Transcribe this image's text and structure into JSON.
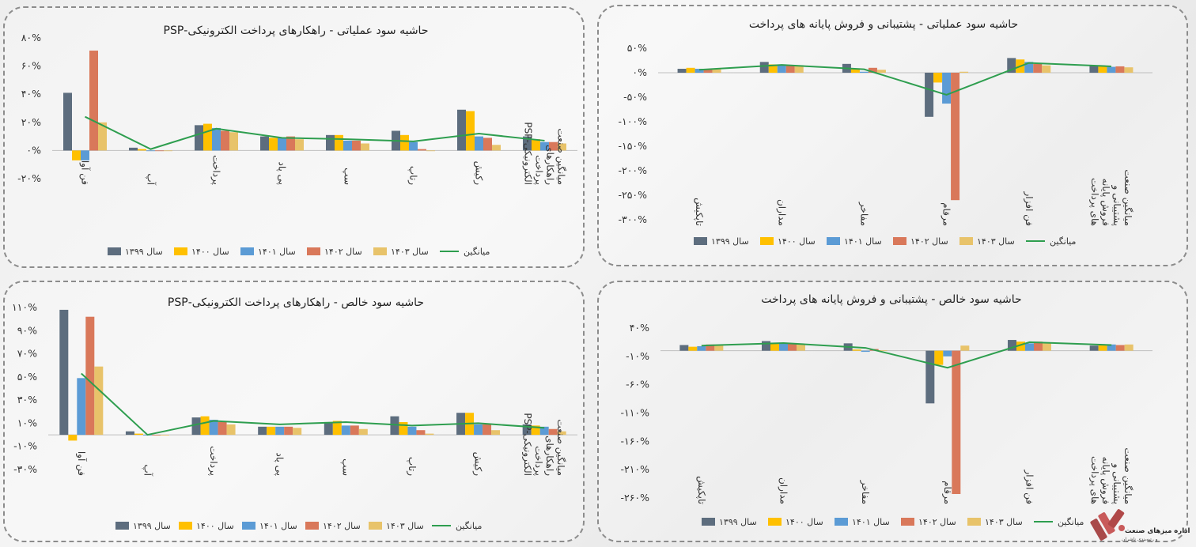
{
  "colors": {
    "s1399": "#5d6d7e",
    "s1400": "#ffc000",
    "s1401": "#5b9bd5",
    "s1402": "#d9785a",
    "s1403": "#e8c36a",
    "avg": "#2e9e4f"
  },
  "legend_labels": [
    "سال ۱۳۹۹",
    "سال ۱۴۰۰",
    "سال ۱۴۰۱",
    "سال ۱۴۰۲",
    "سال ۱۴۰۳",
    "میانگین"
  ],
  "brand": {
    "title": "اداره میزهای صنعت",
    "subtitle": "و رتبه‌بندی ناشران"
  },
  "chart_data": [
    {
      "id": "psp-operating",
      "type": "bar",
      "title": "حاشیه سود عملیاتی - راهکارهای پرداخت الکترونیکی-PSP",
      "ylim": [
        -20,
        80
      ],
      "yticks": [
        -20,
        0,
        20,
        40,
        60,
        80
      ],
      "ytick_labels": [
        "-۲۰%",
        "۰%",
        "۲۰%",
        "۴۰%",
        "۶۰%",
        "۸۰%"
      ],
      "categories": [
        "فن آوا",
        "آپ",
        "پرداخت",
        "پی پاد",
        "سپ",
        "رتاپ",
        "رکیش",
        "میانگین صنعت راهکارهای پرداخت الکترونیکی-PSP"
      ],
      "series": [
        {
          "name": "سال ۱۳۹۹",
          "values": [
            41,
            2,
            18,
            10,
            11,
            14,
            29,
            10
          ]
        },
        {
          "name": "سال ۱۴۰۰",
          "values": [
            -7,
            1,
            19,
            9,
            11,
            11,
            28,
            8
          ]
        },
        {
          "name": "سال ۱۴۰۱",
          "values": [
            -7,
            0,
            16,
            9,
            7,
            6,
            10,
            6
          ]
        },
        {
          "name": "سال ۱۴۰۲",
          "values": [
            71,
            0,
            14,
            10,
            7,
            1,
            9,
            6
          ]
        },
        {
          "name": "سال ۱۴۰۳",
          "values": [
            20,
            0,
            13,
            8,
            5,
            0,
            4,
            5
          ]
        }
      ],
      "average": {
        "name": "میانگین",
        "values": [
          24,
          1,
          15.5,
          9,
          8,
          6.5,
          12,
          7
        ]
      }
    },
    {
      "id": "pos-operating",
      "type": "bar",
      "title": "حاشیه سود عملیاتی - پشتیبانی و فروش پایانه های پرداخت",
      "ylim": [
        -300,
        50
      ],
      "yticks": [
        -300,
        -250,
        -200,
        -150,
        -100,
        -50,
        0,
        50
      ],
      "ytick_labels": [
        "-۳۰۰%",
        "-۲۵۰%",
        "-۲۰۰%",
        "-۱۵۰%",
        "-۱۰۰%",
        "-۵۰%",
        "۰%",
        "۵۰%"
      ],
      "categories": [
        "تاپکیش",
        "مداران",
        "مفاخر",
        "مرقام",
        "فن افزار",
        "میانگین صنعت پشتیبانی و فروش پایانه های پرداخت"
      ],
      "series": [
        {
          "name": "سال ۱۳۹۹",
          "values": [
            8,
            22,
            18,
            -90,
            30,
            15
          ]
        },
        {
          "name": "سال ۱۴۰۰",
          "values": [
            10,
            17,
            8,
            -20,
            27,
            14
          ]
        },
        {
          "name": "سال ۱۴۰۱",
          "values": [
            8,
            17,
            2,
            -63,
            22,
            12
          ]
        },
        {
          "name": "سال ۱۴۰۲",
          "values": [
            8,
            16,
            10,
            -260,
            18,
            13
          ]
        },
        {
          "name": "سال ۱۴۰۳",
          "values": [
            7,
            14,
            6,
            2,
            15,
            11
          ]
        }
      ],
      "average": {
        "name": "میانگین",
        "values": [
          6,
          16,
          7,
          -45,
          20,
          13
        ]
      }
    },
    {
      "id": "psp-net",
      "type": "bar",
      "title": "حاشیه سود خالص - راهکارهای پرداخت الکترونیکی-PSP",
      "ylim": [
        -30,
        110
      ],
      "yticks": [
        -30,
        -10,
        10,
        30,
        50,
        70,
        90,
        110
      ],
      "ytick_labels": [
        "-۳۰%",
        "-۱۰%",
        "۱۰%",
        "۳۰%",
        "۵۰%",
        "۷۰%",
        "۹۰%",
        "۱۱۰%"
      ],
      "categories": [
        "فن آوا",
        "آپ",
        "پرداخت",
        "پی پاد",
        "سپ",
        "رتاپ",
        "رکیش",
        "میانگین صنعت راهکارهای پرداخت الکترونیکی-PSP"
      ],
      "series": [
        {
          "name": "سال ۱۳۹۹",
          "values": [
            108,
            3,
            15,
            7,
            11,
            16,
            19,
            9
          ]
        },
        {
          "name": "سال ۱۴۰۰",
          "values": [
            -5,
            1,
            16,
            7,
            12,
            11,
            19,
            8
          ]
        },
        {
          "name": "سال ۱۴۰۱",
          "values": [
            49,
            0,
            13,
            7,
            8,
            7,
            9,
            7
          ]
        },
        {
          "name": "سال ۱۴۰۲",
          "values": [
            102,
            0,
            11,
            7,
            8,
            4,
            9,
            5
          ]
        },
        {
          "name": "سال ۱۴۰۳",
          "values": [
            59,
            0,
            9,
            6,
            5,
            1,
            4,
            3
          ]
        }
      ],
      "average": {
        "name": "میانگین",
        "values": [
          53,
          0,
          12,
          9,
          11,
          8,
          10,
          6
        ]
      }
    },
    {
      "id": "pos-net",
      "type": "bar",
      "title": "حاشیه سود خالص - پشتیبانی و فروش پایانه های پرداخت",
      "ylim": [
        -260,
        40
      ],
      "yticks": [
        -260,
        -210,
        -160,
        -110,
        -60,
        -10,
        40
      ],
      "ytick_labels": [
        "-۲۶۰%",
        "-۲۱۰%",
        "-۱۶۰%",
        "-۱۱۰%",
        "-۶۰%",
        "-۱۰%",
        "۴۰%"
      ],
      "categories": [
        "تاپکیش",
        "مداران",
        "مفاخر",
        "مرقام",
        "فن افزار",
        "میانگین صنعت پشتیبانی و فروش پایانه های پرداخت"
      ],
      "series": [
        {
          "name": "سال ۱۳۹۹",
          "values": [
            10,
            17,
            13,
            -93,
            19,
            9
          ]
        },
        {
          "name": "سال ۱۴۰۰",
          "values": [
            7,
            13,
            2,
            -25,
            16,
            10
          ]
        },
        {
          "name": "سال ۱۴۰۱",
          "values": [
            8,
            13,
            -2,
            -10,
            13,
            11
          ]
        },
        {
          "name": "سال ۱۴۰۲",
          "values": [
            11,
            13,
            3,
            -253,
            16,
            10
          ]
        },
        {
          "name": "سال ۱۴۰۳",
          "values": [
            11,
            12,
            1,
            9,
            13,
            11
          ]
        }
      ],
      "average": {
        "name": "میانگین",
        "values": [
          9,
          13.5,
          5,
          -30,
          15,
          10
        ]
      }
    }
  ]
}
